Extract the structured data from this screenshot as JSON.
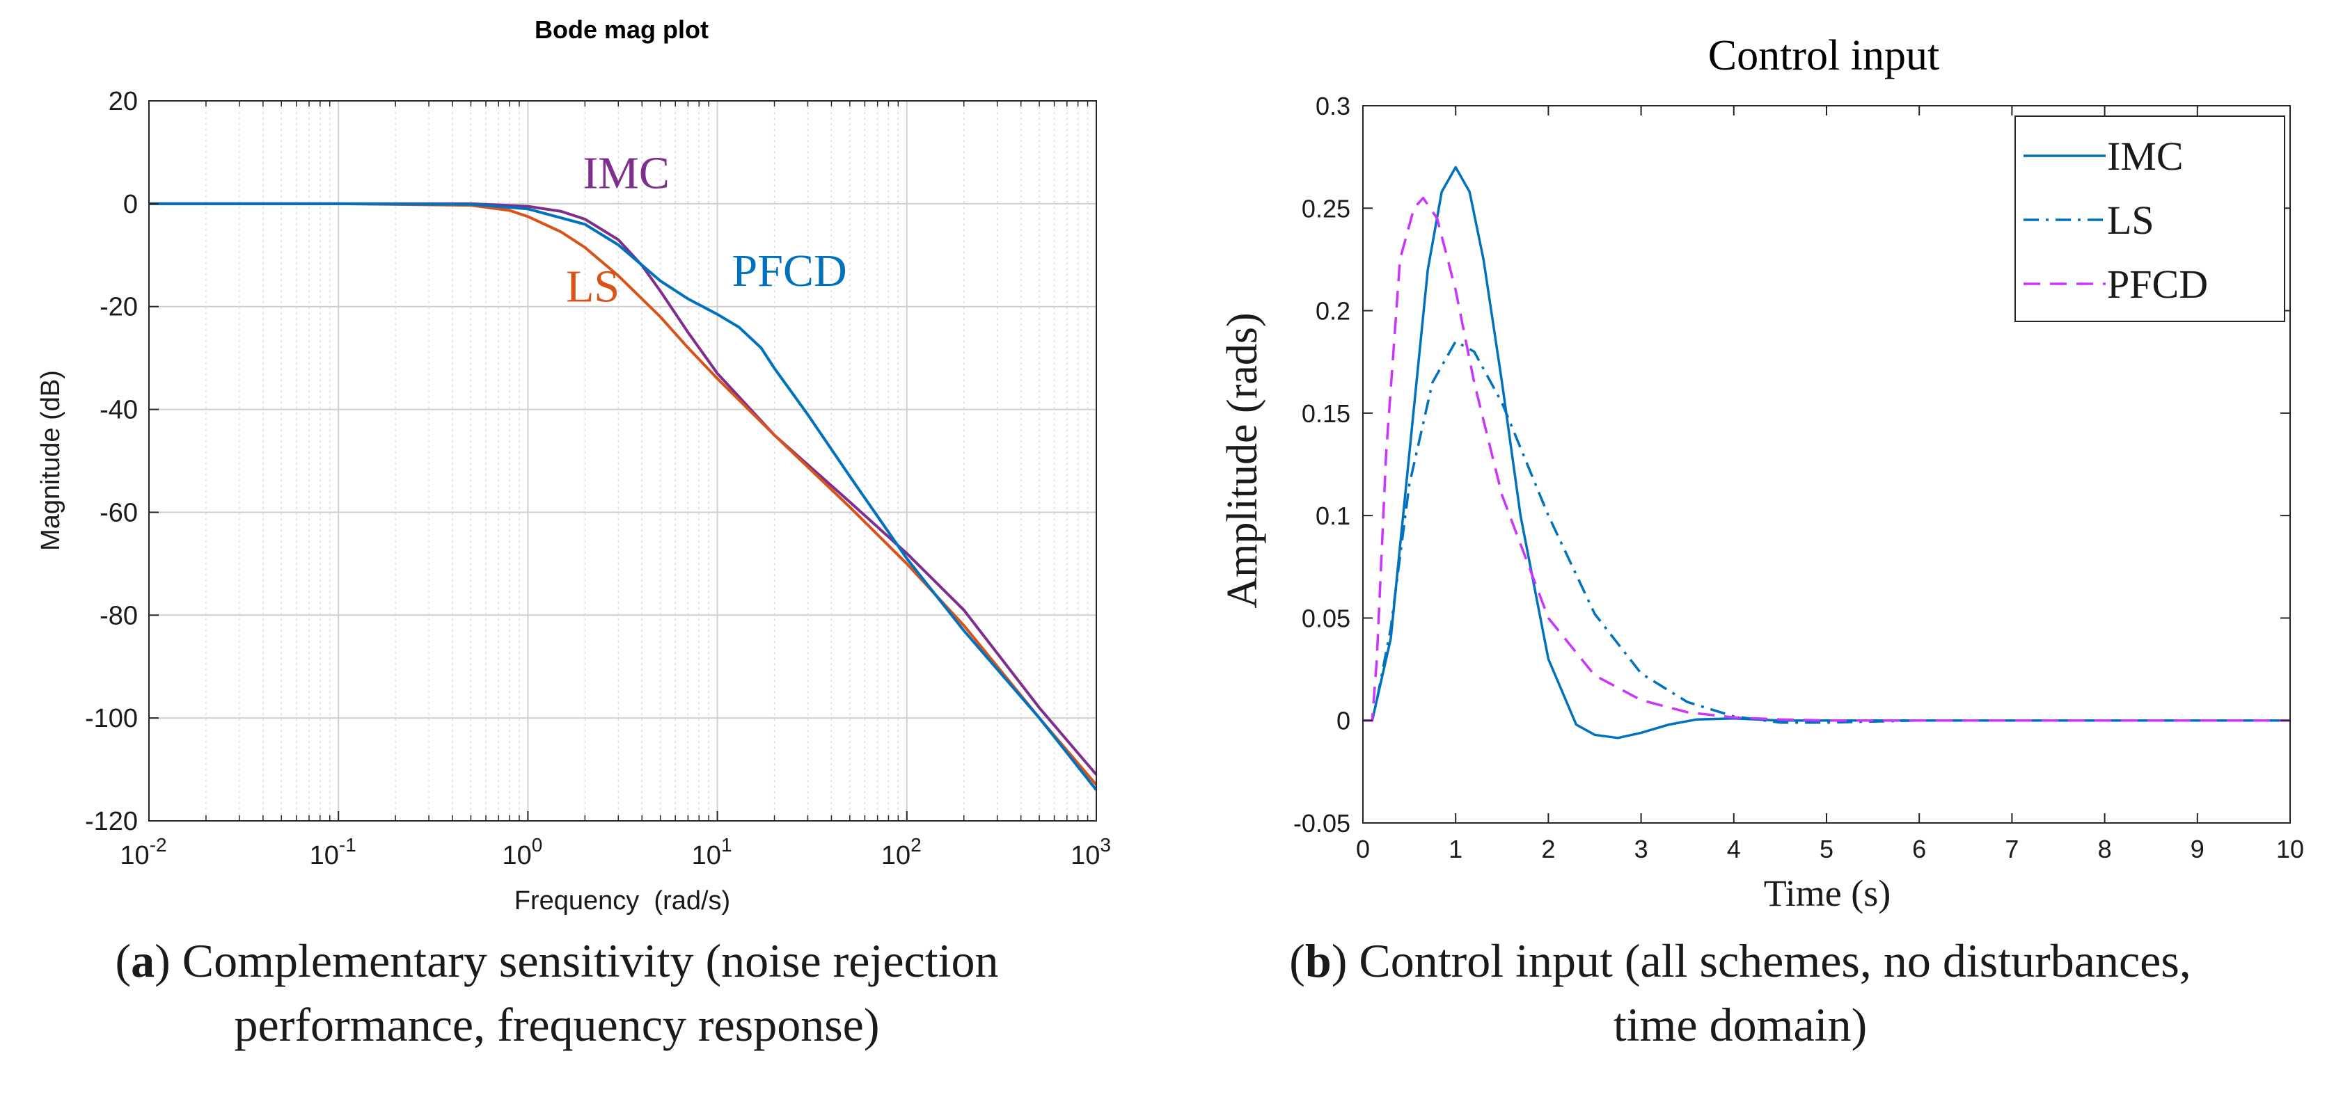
{
  "chart_data": [
    {
      "type": "line",
      "title": "Bode mag plot",
      "xlabel": "Frequency  (rad/s)",
      "ylabel": "Magnitude (dB)",
      "xscale": "log",
      "xlim": [
        0.01,
        1000
      ],
      "ylim": [
        -120,
        20
      ],
      "grid": true,
      "x_ticks": [
        0.01,
        0.1,
        1,
        10,
        100,
        1000
      ],
      "x_tick_labels": [
        {
          "base": "10",
          "exp": "-2"
        },
        {
          "base": "10",
          "exp": "-1"
        },
        {
          "base": "10",
          "exp": "0"
        },
        {
          "base": "10",
          "exp": "1"
        },
        {
          "base": "10",
          "exp": "2"
        },
        {
          "base": "10",
          "exp": "3"
        }
      ],
      "y_ticks": [
        20,
        0,
        -20,
        -40,
        -60,
        -80,
        -100,
        -120
      ],
      "y_tick_labels": [
        "20",
        "0",
        "-20",
        "-40",
        "-60",
        "-80",
        "-100",
        "-120"
      ],
      "series": [
        {
          "name": "IMC",
          "color": "#7e2f8e",
          "x": [
            0.01,
            0.1,
            0.5,
            1,
            1.5,
            2,
            3,
            4,
            5,
            7,
            10,
            20,
            50,
            100,
            200,
            500,
            1000
          ],
          "y": [
            0,
            0,
            0,
            -0.5,
            -1.5,
            -3,
            -7,
            -12,
            -17,
            -25,
            -33,
            -45,
            -58,
            -68,
            -79,
            -98,
            -111
          ]
        },
        {
          "name": "LS",
          "color": "#d95319",
          "x": [
            0.01,
            0.1,
            0.5,
            0.8,
            1,
            1.5,
            2,
            3,
            5,
            7,
            10,
            20,
            50,
            100,
            200,
            500,
            1000
          ],
          "y": [
            0,
            0,
            -0.3,
            -1.3,
            -2.5,
            -5.5,
            -8.5,
            -14,
            -22,
            -28,
            -34,
            -45,
            -59,
            -70,
            -82,
            -100,
            -113
          ]
        },
        {
          "name": "PFCD",
          "color": "#0072bd",
          "x": [
            0.01,
            0.1,
            0.5,
            1,
            2,
            3,
            5,
            7,
            10,
            13,
            17,
            20,
            30,
            50,
            100,
            200,
            500,
            1000
          ],
          "y": [
            0,
            0,
            -0.1,
            -1,
            -4,
            -8,
            -15,
            -18.5,
            -21.5,
            -24,
            -28,
            -32,
            -41,
            -53,
            -69,
            -83,
            -100,
            -114
          ]
        }
      ],
      "annotations": [
        {
          "text": "IMC",
          "x": 3.3,
          "y": 3,
          "color": "#7e2f8e"
        },
        {
          "text": "LS",
          "x": 2.2,
          "y": -19,
          "color": "#d95319"
        },
        {
          "text": "PFCD",
          "x": 24,
          "y": -16,
          "color": "#0072bd"
        }
      ]
    },
    {
      "type": "line",
      "title": "Control input",
      "xlabel": "Time (s)",
      "ylabel": "Amplitude (rads)",
      "xlim": [
        0,
        10
      ],
      "ylim": [
        -0.05,
        0.3
      ],
      "grid": false,
      "legend": "top-right",
      "x_ticks": [
        0,
        1,
        2,
        3,
        4,
        5,
        6,
        7,
        8,
        9,
        10
      ],
      "x_tick_labels": [
        "0",
        "1",
        "2",
        "3",
        "4",
        "5",
        "6",
        "7",
        "8",
        "9",
        "10"
      ],
      "y_ticks": [
        -0.05,
        0,
        0.05,
        0.1,
        0.15,
        0.2,
        0.25,
        0.3
      ],
      "y_tick_labels": [
        "-0.05",
        "0",
        "0.05",
        "0.1",
        "0.15",
        "0.2",
        "0.25",
        "0.3"
      ],
      "series": [
        {
          "name": "IMC",
          "style": "solid",
          "color": "#0072bd",
          "x": [
            0,
            0.1,
            0.15,
            0.3,
            0.5,
            0.7,
            0.85,
            1.0,
            1.15,
            1.3,
            1.5,
            1.7,
            2.0,
            2.3,
            2.5,
            2.75,
            3.0,
            3.3,
            3.6,
            4.0,
            4.5,
            5.0,
            6.0,
            8.0,
            10.0
          ],
          "y": [
            0,
            0,
            0.01,
            0.04,
            0.13,
            0.22,
            0.258,
            0.27,
            0.258,
            0.225,
            0.165,
            0.1,
            0.03,
            -0.002,
            -0.007,
            -0.0085,
            -0.006,
            -0.002,
            0.0005,
            0.001,
            0,
            0,
            0,
            0,
            0
          ]
        },
        {
          "name": "LS",
          "style": "dashdot",
          "color": "#0072bd",
          "x": [
            0,
            0.1,
            0.15,
            0.3,
            0.5,
            0.75,
            1.0,
            1.2,
            1.5,
            2.0,
            2.5,
            3.0,
            3.5,
            4.0,
            4.5,
            5.0,
            6.0,
            8.0,
            10.0
          ],
          "y": [
            0,
            0,
            0.01,
            0.045,
            0.115,
            0.165,
            0.185,
            0.18,
            0.155,
            0.1,
            0.052,
            0.023,
            0.009,
            0.002,
            -0.001,
            -0.001,
            0,
            0,
            0
          ]
        },
        {
          "name": "PFCD",
          "style": "dashed",
          "color": "#cc33ff",
          "x": [
            0,
            0.1,
            0.15,
            0.25,
            0.4,
            0.55,
            0.65,
            0.8,
            1.0,
            1.2,
            1.5,
            2.0,
            2.5,
            3.0,
            3.5,
            4.0,
            4.5,
            5.0,
            6.0,
            8.0,
            10.0
          ],
          "y": [
            0,
            0,
            0.03,
            0.13,
            0.225,
            0.25,
            0.255,
            0.245,
            0.21,
            0.165,
            0.11,
            0.05,
            0.022,
            0.01,
            0.004,
            0.0015,
            0.0005,
            0,
            0,
            0,
            0
          ]
        }
      ]
    }
  ],
  "captions": {
    "a": {
      "letter": "a",
      "line1": " Complementary sensitivity (noise rejection",
      "line2": "performance, frequency response)"
    },
    "b": {
      "letter": "b",
      "line1": " Control input (all schemes, no disturbances,",
      "line2": "time domain)"
    }
  }
}
